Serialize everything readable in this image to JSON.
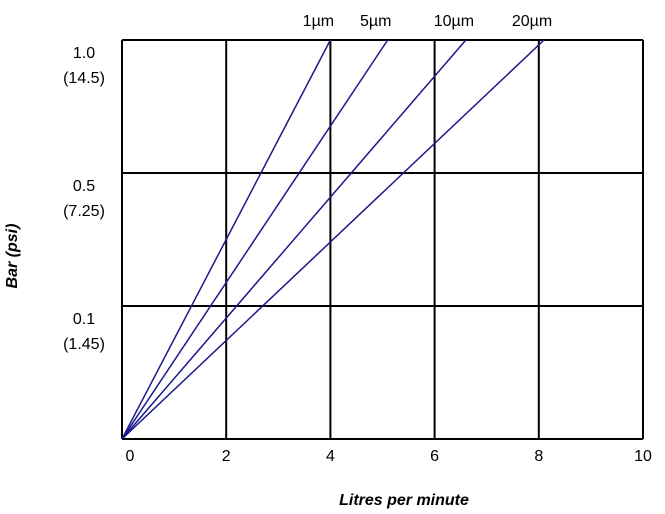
{
  "chart_data": {
    "type": "line",
    "xlabel": "Litres per minute",
    "ylabel": "Bar (psi)",
    "xlim": [
      0,
      10
    ],
    "x_ticks": [
      "0",
      "2",
      "4",
      "6",
      "8",
      "10"
    ],
    "y_tick_labels": [
      {
        "value": "1.0",
        "sub": "(14.5)"
      },
      {
        "value": "0.5",
        "sub": "(7.25)"
      },
      {
        "value": "0.1",
        "sub": "(1.45)"
      }
    ],
    "grid": true,
    "series": [
      {
        "name": "1µm",
        "points": [
          {
            "x": 0,
            "y": "0"
          },
          {
            "x": 4.0,
            "y": "1.0"
          }
        ]
      },
      {
        "name": "5µm",
        "points": [
          {
            "x": 0,
            "y": "0"
          },
          {
            "x": 5.1,
            "y": "1.0"
          }
        ]
      },
      {
        "name": "10µm",
        "points": [
          {
            "x": 0,
            "y": "0"
          },
          {
            "x": 6.6,
            "y": "1.0"
          }
        ]
      },
      {
        "name": "20µm",
        "points": [
          {
            "x": 0,
            "y": "0"
          },
          {
            "x": 8.1,
            "y": "1.0"
          }
        ]
      }
    ],
    "colors": {
      "series": "#1a1a8c",
      "grid": "#000000"
    }
  }
}
